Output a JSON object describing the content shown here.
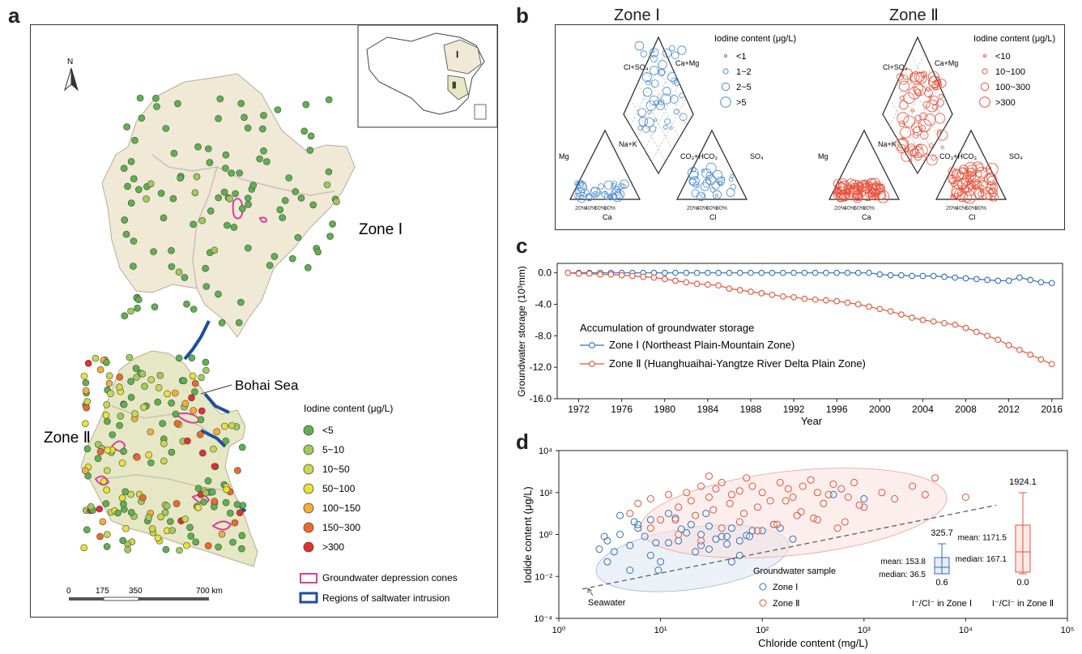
{
  "panels": {
    "a": {
      "label": "a",
      "north": "N",
      "zone1": "Zone Ⅰ",
      "zone2": "Zone Ⅱ",
      "sea": "Bohai Sea",
      "inset_zone1": "Ⅰ",
      "inset_zone2": "Ⅱ",
      "legend_title": "Iodine content (μg/L)",
      "legend": [
        {
          "label": "<5",
          "color": "#5fb14e"
        },
        {
          "label": "5~10",
          "color": "#9fcb5a"
        },
        {
          "label": "10~50",
          "color": "#c9d84c"
        },
        {
          "label": "50~100",
          "color": "#e8e23a"
        },
        {
          "label": "100~150",
          "color": "#f5ae3a"
        },
        {
          "label": "150~300",
          "color": "#ef6a2a"
        },
        {
          "label": ">300",
          "color": "#e23030"
        }
      ],
      "cones_label": "Groundwater depression cones",
      "intrusion_label": "Regions of saltwater intrusion",
      "scale": [
        "0",
        "175",
        "350",
        "700 km"
      ]
    },
    "b": {
      "label": "b",
      "zone1_title": "Zone Ⅰ",
      "zone2_title": "Zone Ⅱ",
      "legend1_title": "Iodine content (μg/L)",
      "legend1": [
        "<1",
        "1~2",
        "2~5",
        ">5"
      ],
      "legend2_title": "Iodine content (μg/L)",
      "legend2": [
        "<10",
        "10~100",
        "100~300",
        ">300"
      ],
      "axis_labels": [
        "Mg",
        "Ca",
        "Na+K",
        "CO₃+HCO₃",
        "SO₄",
        "Cl",
        "Cl+SO₄",
        "Ca+Mg"
      ],
      "pct": [
        "20%",
        "40%",
        "60%",
        "80%"
      ]
    },
    "c": {
      "label": "c",
      "legend_title": "Accumulation of groundwater storage",
      "ylabel": "Groundwater storage (10³mm)",
      "xlabel": "Year"
    },
    "d": {
      "label": "d",
      "ylabel": "Iodide content (μg/L)",
      "xlabel": "Chloride content (mg/L)",
      "seawater": "Seawater",
      "legend_title": "Groundwater sample",
      "zone1": "Zone Ⅰ",
      "zone2": "Zone Ⅱ",
      "box1": {
        "max": "325.7",
        "mean": "mean: 153.8",
        "median": "median: 36.5",
        "min": "0.6",
        "caption": "I⁻/Cl⁻ in Zone Ⅰ"
      },
      "box2": {
        "max": "1924.1",
        "mean": "mean: 1171.5",
        "median": "median: 167.1",
        "min": "0.0",
        "caption": "I⁻/Cl⁻ in Zone Ⅱ"
      }
    }
  },
  "chart_data": [
    {
      "type": "line",
      "panel": "c",
      "xlabel": "Year",
      "ylabel": "Groundwater storage (10³mm)",
      "xticks": [
        1972,
        1976,
        1980,
        1984,
        1988,
        1992,
        1996,
        2000,
        2004,
        2008,
        2012,
        2016
      ],
      "yticks": [
        "0.0",
        "-4.0",
        "-8.0",
        "-12.0",
        "-16.0"
      ],
      "xlim": [
        1970,
        2017
      ],
      "ylim": [
        -16,
        1.2
      ],
      "x": [
        1971,
        1972,
        1973,
        1974,
        1975,
        1976,
        1977,
        1978,
        1979,
        1980,
        1981,
        1982,
        1983,
        1984,
        1985,
        1986,
        1987,
        1988,
        1989,
        1990,
        1991,
        1992,
        1993,
        1994,
        1995,
        1996,
        1997,
        1998,
        1999,
        2000,
        2001,
        2002,
        2003,
        2004,
        2005,
        2006,
        2007,
        2008,
        2009,
        2010,
        2011,
        2012,
        2013,
        2014,
        2015,
        2016
      ],
      "series": [
        {
          "name": "Zone Ⅰ (Northeast Plain-Mountain Zone)",
          "color": "#2f6fb8",
          "values": [
            0.0,
            0.0,
            0.0,
            0.0,
            0.0,
            0.0,
            0.0,
            0.0,
            0.0,
            0.0,
            0.0,
            0.0,
            0.0,
            0.0,
            0.0,
            0.0,
            0.0,
            0.0,
            0.0,
            0.0,
            0.0,
            0.0,
            0.0,
            0.0,
            0.0,
            0.0,
            0.0,
            0.0,
            0.0,
            -0.2,
            -0.3,
            -0.3,
            -0.4,
            -0.4,
            -0.4,
            -0.5,
            -0.6,
            -0.7,
            -0.8,
            -0.9,
            -1.0,
            -1.0,
            -0.6,
            -0.9,
            -1.2,
            -1.3
          ]
        },
        {
          "name": "Zone Ⅱ (Huanghuaihai-Yangtze River Delta Plain Zone)",
          "color": "#e8503a",
          "values": [
            0.0,
            -0.1,
            -0.1,
            -0.2,
            -0.2,
            -0.3,
            -0.4,
            -0.5,
            -0.6,
            -0.8,
            -1.0,
            -1.2,
            -1.4,
            -1.5,
            -1.6,
            -2.0,
            -2.2,
            -2.4,
            -2.6,
            -2.8,
            -3.0,
            -3.1,
            -3.3,
            -3.4,
            -3.5,
            -3.6,
            -3.8,
            -4.0,
            -4.3,
            -4.6,
            -4.9,
            -5.3,
            -5.7,
            -6.0,
            -6.2,
            -6.4,
            -6.6,
            -7.0,
            -7.5,
            -8.0,
            -8.5,
            -9.2,
            -9.8,
            -10.4,
            -11.0,
            -11.6
          ]
        }
      ]
    },
    {
      "type": "scatter",
      "panel": "d",
      "xlabel": "Chloride content (mg/L)",
      "ylabel": "Iodide content (μg/L)",
      "x_scale": "log",
      "y_scale": "log",
      "xticks": [
        "10⁰",
        "10¹",
        "10²",
        "10³",
        "10⁴",
        "10⁵"
      ],
      "yticks": [
        "10⁻⁴",
        "10⁻²",
        "10⁰",
        "10²",
        "10⁴"
      ],
      "xlim": [
        1,
        100000
      ],
      "ylim": [
        0.0001,
        10000
      ],
      "seawater_line": [
        [
          1.7,
          0.0025
        ],
        [
          20000,
          25
        ]
      ],
      "series": [
        {
          "name": "Zone Ⅰ",
          "color": "#2f6fb8",
          "x": [
            2.5,
            3,
            4,
            5,
            6,
            7,
            8,
            10,
            12,
            15,
            20,
            25,
            30,
            40,
            50,
            60,
            80,
            3,
            5,
            8,
            12,
            18,
            25,
            35,
            50,
            70,
            100,
            150,
            200,
            4,
            6,
            9,
            14,
            22,
            30,
            45,
            60,
            1000,
            2.8,
            3.5,
            5.5,
            9.5,
            16,
            28,
            45,
            75,
            130,
            500
          ],
          "y": [
            0.2,
            0.5,
            1,
            0.3,
            2,
            0.8,
            5,
            0.05,
            10,
            0.5,
            3,
            1,
            0.2,
            0.8,
            2,
            0.5,
            1.5,
            0.05,
            0.02,
            0.1,
            0.4,
            1.2,
            0.3,
            0.6,
            0.05,
            0.9,
            1.5,
            2,
            0.6,
            8,
            3,
            0.4,
            6,
            0.15,
            2.5,
            0.8,
            0.1,
            50,
            0.8,
            0.15,
            4,
            0.02,
            1.8,
            10,
            0.35,
            0.8,
            3,
            80
          ]
        },
        {
          "name": "Zone Ⅱ",
          "color": "#e8503a",
          "x": [
            5,
            6,
            8,
            10,
            12,
            15,
            18,
            20,
            25,
            30,
            35,
            40,
            50,
            60,
            70,
            80,
            100,
            120,
            150,
            180,
            200,
            250,
            300,
            350,
            400,
            500,
            600,
            700,
            800,
            1000,
            1500,
            2000,
            3000,
            4000,
            5000,
            10000,
            8,
            14,
            22,
            33,
            48,
            66,
            90,
            130,
            170,
            240,
            320,
            450,
            650,
            900,
            15,
            25,
            40,
            60,
            90,
            140,
            220,
            350,
            550,
            30
          ],
          "y": [
            10,
            30,
            50,
            5,
            80,
            20,
            100,
            40,
            200,
            60,
            150,
            300,
            80,
            120,
            500,
            200,
            100,
            40,
            300,
            150,
            60,
            200,
            400,
            100,
            30,
            250,
            150,
            60,
            300,
            20,
            100,
            50,
            200,
            80,
            500,
            60,
            2,
            5,
            8,
            15,
            30,
            10,
            20,
            3,
            40,
            12,
            6,
            80,
            4,
            25,
            1,
            0.5,
            2,
            4,
            1.5,
            3,
            8,
            5,
            2,
            600
          ]
        }
      ],
      "box_plots": [
        {
          "name": "I⁻/Cl⁻ in Zone Ⅰ",
          "max": 325.7,
          "mean": 153.8,
          "median": 36.5,
          "min": 0.6
        },
        {
          "name": "I⁻/Cl⁻ in Zone Ⅱ",
          "max": 1924.1,
          "mean": 1171.5,
          "median": 167.1,
          "min": 0.0
        }
      ]
    }
  ]
}
